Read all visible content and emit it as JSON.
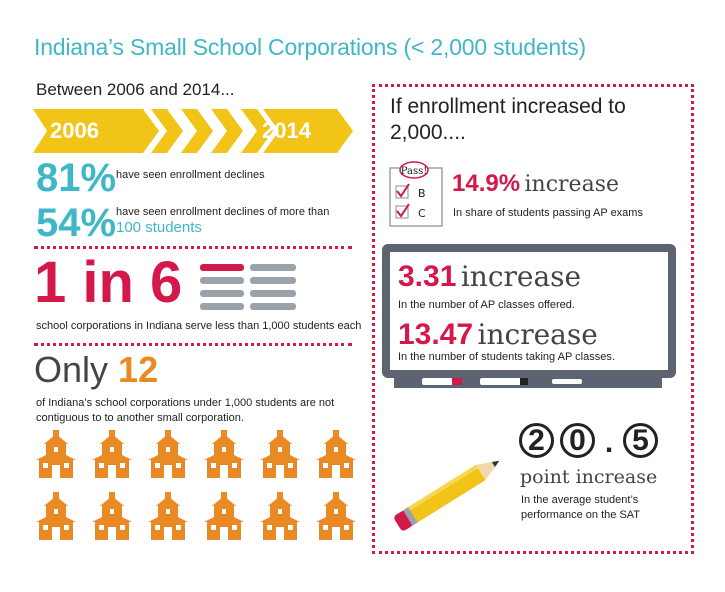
{
  "header": {
    "title": "Indiana’s Small School Corporations (< 2,000 students)",
    "subtitle": "Between 2006 and 2014..."
  },
  "timeline": {
    "start_year": "2006",
    "end_year": "2014"
  },
  "stats_left": [
    {
      "value": "81%",
      "text": "have seen enrollment declines"
    },
    {
      "value": "54%",
      "text": "have seen enrollment declines of more than",
      "highlight": "100 students"
    }
  ],
  "one_in_six": {
    "value": "1 in 6",
    "text": "school corporations in Indiana serve less than 1,000 students each"
  },
  "only_twelve": {
    "prefix": "Only",
    "number": "12",
    "text": "of Indiana’s school corporations under 1,000 students are not contiguous to to another small corporation."
  },
  "right_panel": {
    "heading": "If enrollment increased to 2,000....",
    "checklist": {
      "title": "Pass!",
      "options": [
        "B",
        "C"
      ]
    },
    "ap_pass": {
      "value": "14.9%",
      "word": "increase",
      "text": "In share of students passing AP exams"
    },
    "board_stats": [
      {
        "value": "3.31",
        "word": "increase",
        "text": "In the number of AP classes offered."
      },
      {
        "value": "13.47",
        "word": "increase",
        "text": "In the number of students taking AP classes."
      }
    ],
    "sat": {
      "digits": [
        "2",
        "0",
        ".",
        "5"
      ],
      "word": "point increase",
      "text": "In the average student’s performance on the SAT"
    }
  },
  "colors": {
    "teal": "#3fb7c6",
    "red": "#d4184a",
    "orange": "#e98a24",
    "yellow": "#f2c418",
    "board_frame": "#5b6470"
  },
  "icons": {
    "school": "schoolhouse-icon",
    "bars": "bar-rows-icon",
    "pencil": "pencil-icon",
    "whiteboard": "whiteboard-icon",
    "checklist": "checklist-icon"
  }
}
